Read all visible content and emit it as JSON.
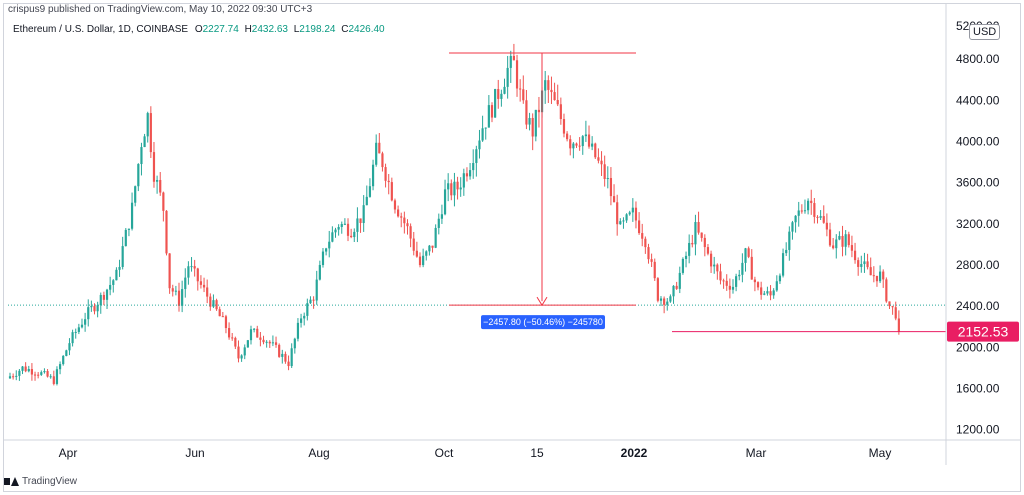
{
  "header": {
    "published_line": "crispus9 published on TradingView.com, May 10, 2022 09:30 UTC+3",
    "symbol_line": "Ethereum / U.S. Dollar, 1D, COINBASE",
    "ohlc": [
      {
        "key": "O",
        "value": "2227.74"
      },
      {
        "key": "H",
        "value": "2432.63"
      },
      {
        "key": "L",
        "value": "2198.24"
      },
      {
        "key": "C",
        "value": "2426.40"
      }
    ],
    "currency": "USD"
  },
  "footer": {
    "brand": "TradingView"
  },
  "colors": {
    "up": "#26a69a",
    "down": "#ef5350",
    "measure": "#f23645",
    "support": "#e91e63",
    "measure_label_bg": "#2962ff"
  },
  "chart_data": {
    "type": "candlestick",
    "ylim": [
      1100,
      5200
    ],
    "yticks": [
      1200,
      1600,
      2000,
      2400,
      2800,
      3200,
      3600,
      4000,
      4400,
      4800
    ],
    "ytick_labels": [
      "1200.00",
      "1600.00",
      "2000.00",
      "2400.00",
      "2800.00",
      "3200.00",
      "3600.00",
      "4000.00",
      "4400.00",
      "4800.00"
    ],
    "xlabels": [
      "Apr",
      "Jun",
      "Aug",
      "Oct",
      "15",
      "2022",
      "Mar",
      "May"
    ],
    "price_series": [
      [
        0,
        1700
      ],
      [
        5,
        1800
      ],
      [
        10,
        1760
      ],
      [
        15,
        1680
      ],
      [
        20,
        2050
      ],
      [
        25,
        2300
      ],
      [
        30,
        2480
      ],
      [
        35,
        2700
      ],
      [
        40,
        3350
      ],
      [
        43,
        4000
      ],
      [
        45,
        4250
      ],
      [
        47,
        3700
      ],
      [
        50,
        3350
      ],
      [
        52,
        2600
      ],
      [
        55,
        2450
      ],
      [
        58,
        2800
      ],
      [
        62,
        2600
      ],
      [
        66,
        2400
      ],
      [
        70,
        2200
      ],
      [
        74,
        1900
      ],
      [
        78,
        2150
      ],
      [
        82,
        2100
      ],
      [
        86,
        1980
      ],
      [
        90,
        1850
      ],
      [
        94,
        2300
      ],
      [
        98,
        2500
      ],
      [
        102,
        3000
      ],
      [
        106,
        3200
      ],
      [
        110,
        3150
      ],
      [
        114,
        3300
      ],
      [
        118,
        3900
      ],
      [
        120,
        3800
      ],
      [
        124,
        3400
      ],
      [
        128,
        3150
      ],
      [
        132,
        2800
      ],
      [
        136,
        3000
      ],
      [
        140,
        3500
      ],
      [
        144,
        3550
      ],
      [
        148,
        3800
      ],
      [
        152,
        4150
      ],
      [
        156,
        4400
      ],
      [
        160,
        4700
      ],
      [
        162,
        4750
      ],
      [
        165,
        4300
      ],
      [
        168,
        4100
      ],
      [
        172,
        4550
      ],
      [
        176,
        4300
      ],
      [
        180,
        4000
      ],
      [
        184,
        4050
      ],
      [
        188,
        3850
      ],
      [
        192,
        3600
      ],
      [
        196,
        3150
      ],
      [
        200,
        3300
      ],
      [
        204,
        3050
      ],
      [
        208,
        2500
      ],
      [
        212,
        2450
      ],
      [
        216,
        2800
      ],
      [
        220,
        3150
      ],
      [
        224,
        2900
      ],
      [
        228,
        2650
      ],
      [
        232,
        2600
      ],
      [
        236,
        2900
      ],
      [
        240,
        2550
      ],
      [
        244,
        2500
      ],
      [
        248,
        2850
      ],
      [
        252,
        3250
      ],
      [
        256,
        3450
      ],
      [
        260,
        3250
      ],
      [
        264,
        3000
      ],
      [
        268,
        3050
      ],
      [
        272,
        2850
      ],
      [
        276,
        2700
      ],
      [
        279,
        2700
      ],
      [
        282,
        2400
      ],
      [
        285,
        2300
      ]
    ],
    "series_start": "2021-03-10",
    "series_end": "2022-05-10",
    "last_price": "2152.53",
    "measure": {
      "label": "−2457.80 (−50.46%) −245780",
      "from_price": 4860,
      "to_price": 2410
    },
    "support_price": 2152.53
  }
}
